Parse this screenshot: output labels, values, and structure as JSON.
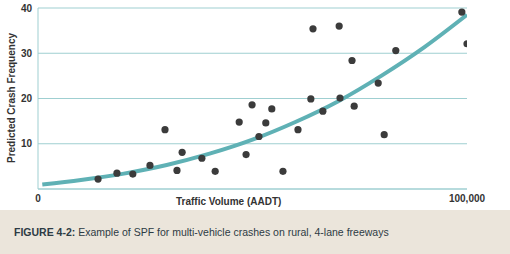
{
  "chart_data": {
    "type": "scatter",
    "figure_label": "FIGURE 4-2:",
    "title": "Example of SPF for multi-vehicle crashes on rural, 4-lane freeways",
    "x_label": "Traffic Volume (AADT)",
    "y_label": "Predicted Crash Frequency",
    "xlim": [
      0,
      100000
    ],
    "xticks": [
      0,
      {
        "value": 100000,
        "label": "100,000"
      }
    ],
    "ylim": [
      0,
      40
    ],
    "yticks": [
      10,
      20,
      30,
      40
    ],
    "grid": true,
    "series": [
      {
        "type": "line",
        "color": "#5fb1b5",
        "line_style": "solid",
        "x": [
          1000,
          10000,
          20000,
          30000,
          40000,
          50000,
          60000,
          70000,
          80000,
          90000,
          100000
        ],
        "values": [
          1.0,
          2.0,
          3.4,
          5.3,
          7.8,
          10.9,
          14.8,
          19.4,
          25.0,
          31.3,
          38.5
        ]
      },
      {
        "type": "scatter",
        "color": "#3b3b3b",
        "marker": "circle",
        "x": [
          14000,
          18400,
          22100,
          26100,
          29600,
          32400,
          33600,
          38200,
          41300,
          46900,
          48500,
          49900,
          51500,
          53100,
          54500,
          57100,
          60600,
          63600,
          64100,
          66400,
          70200,
          70400,
          73200,
          73700,
          79300,
          80700,
          83400,
          98800,
          100000
        ],
        "values": [
          2.2,
          3.5,
          3.3,
          5.2,
          13.1,
          4.1,
          8.1,
          6.8,
          3.9,
          14.8,
          7.6,
          18.6,
          11.6,
          14.6,
          17.7,
          3.9,
          13.1,
          19.9,
          35.4,
          17.2,
          36.0,
          20.1,
          28.4,
          18.3,
          23.4,
          12.0,
          30.6,
          39.1,
          32.1
        ]
      }
    ]
  }
}
